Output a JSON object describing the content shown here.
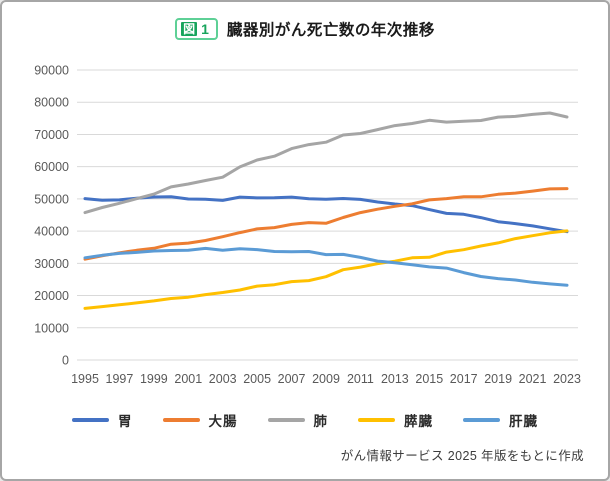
{
  "header": {
    "badge_icon_text": "図",
    "badge_number": "1",
    "title": "臓器別がん死亡数の年次推移"
  },
  "footer": {
    "source": "がん情報サービス 2025 年版をもとに作成"
  },
  "colors": {
    "badge_green": "#17a45c",
    "badge_border": "#5ed096",
    "grid_line": "#d9d9d9",
    "tick_text": "#595959",
    "card_border": "#a6a6a6"
  },
  "chart_data": {
    "type": "line",
    "title": "臓器別がん死亡数の年次推移",
    "xlabel": "",
    "ylabel": "",
    "ylim": [
      0,
      90000
    ],
    "y_ticks": [
      0,
      10000,
      20000,
      30000,
      40000,
      50000,
      60000,
      70000,
      80000,
      90000
    ],
    "grid": true,
    "legend_position": "bottom",
    "x": [
      1995,
      1996,
      1997,
      1998,
      1999,
      2000,
      2001,
      2002,
      2003,
      2004,
      2005,
      2006,
      2007,
      2008,
      2009,
      2010,
      2011,
      2012,
      2013,
      2014,
      2015,
      2016,
      2017,
      2018,
      2019,
      2020,
      2021,
      2022,
      2023
    ],
    "x_tick_labels": [
      "1995",
      "1997",
      "1999",
      "2001",
      "2003",
      "2005",
      "2007",
      "2009",
      "2011",
      "2013",
      "2015",
      "2017",
      "2019",
      "2021",
      "2023"
    ],
    "series": [
      {
        "name": "胃",
        "color": "#4472c4",
        "values": [
          50076,
          49581,
          49694,
          50201,
          50591,
          50650,
          49970,
          49871,
          49535,
          50562,
          50311,
          50329,
          50543,
          50039,
          49899,
          50136,
          49830,
          49034,
          48414,
          47903,
          46679,
          45509,
          45226,
          44192,
          42931,
          42319,
          41624,
          40711,
          39805
        ]
      },
      {
        "name": "大腸",
        "color": "#ed7d31",
        "values": [
          31274,
          32334,
          33265,
          34054,
          34663,
          35948,
          36286,
          37094,
          38280,
          39524,
          40681,
          41100,
          42088,
          42632,
          42434,
          44238,
          45744,
          46805,
          47694,
          48485,
          49699,
          50099,
          50681,
          50658,
          51420,
          51788,
          52418,
          53088,
          53192
        ]
      },
      {
        "name": "肺",
        "color": "#a5a5a5",
        "values": [
          45745,
          47333,
          48624,
          50073,
          51489,
          53724,
          54608,
          55710,
          56720,
          59922,
          62063,
          63255,
          65608,
          66849,
          67583,
          69813,
          70293,
          71518,
          72734,
          73396,
          74378,
          73838,
          74120,
          74328,
          75394,
          75585,
          76212,
          76663,
          75419
        ]
      },
      {
        "name": "膵臓",
        "color": "#ffc000",
        "values": [
          16019,
          16565,
          17129,
          17722,
          18356,
          19094,
          19492,
          20302,
          20939,
          21714,
          22927,
          23382,
          24330,
          24634,
          25866,
          28017,
          28829,
          29916,
          30672,
          31716,
          31866,
          33475,
          34224,
          35390,
          36356,
          37677,
          38579,
          39468,
          40056
        ]
      },
      {
        "name": "肝臓",
        "color": "#5b9bd5",
        "values": [
          31707,
          32480,
          33072,
          33399,
          33825,
          33981,
          34066,
          34637,
          34089,
          34510,
          34268,
          33662,
          33608,
          33665,
          32725,
          32765,
          31829,
          30690,
          30175,
          29543,
          28889,
          28528,
          27114,
          25925,
          25264,
          24839,
          24102,
          23620,
          23204
        ]
      }
    ]
  }
}
